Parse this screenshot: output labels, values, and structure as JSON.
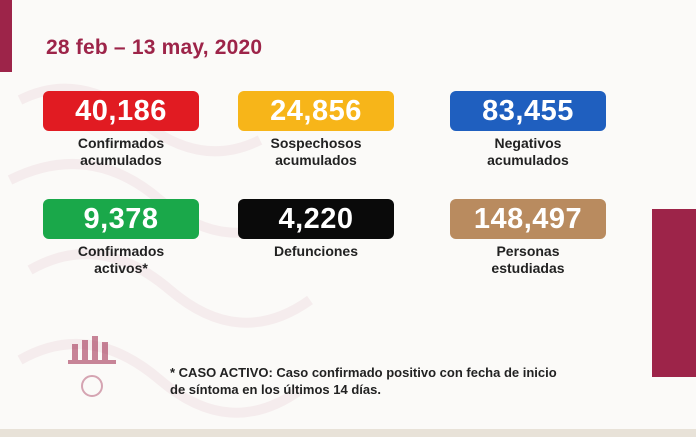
{
  "header": {
    "date_range": "28 feb – 13 may, 2020"
  },
  "colors": {
    "brand": "#9d2449",
    "confirmados": "#e11b22",
    "sospechosos": "#f7b519",
    "negativos": "#1f5fbf",
    "activos": "#1aa84a",
    "defunciones": "#0a0a0a",
    "estudiadas": "#b98b5f"
  },
  "stats": {
    "confirmados": {
      "value": "40,186",
      "label_line1": "Confirmados",
      "label_line2": "acumulados"
    },
    "sospechosos": {
      "value": "24,856",
      "label_line1": "Sospechosos",
      "label_line2": "acumulados"
    },
    "negativos": {
      "value": "83,455",
      "label_line1": "Negativos",
      "label_line2": "acumulados"
    },
    "activos": {
      "value": "9,378",
      "label_line1": "Confirmados",
      "label_line2": "activos*"
    },
    "defunciones": {
      "value": "4,220",
      "label_line1": "Defunciones"
    },
    "estudiadas": {
      "value": "148,497",
      "label_line1": "Personas",
      "label_line2": "estudiadas"
    }
  },
  "footnote": {
    "line1": "* CASO ACTIVO: Caso confirmado positivo con fecha de inicio",
    "line2": "de síntoma en los últimos 14 días."
  },
  "icons": {
    "logo": "government-logo-icon"
  }
}
